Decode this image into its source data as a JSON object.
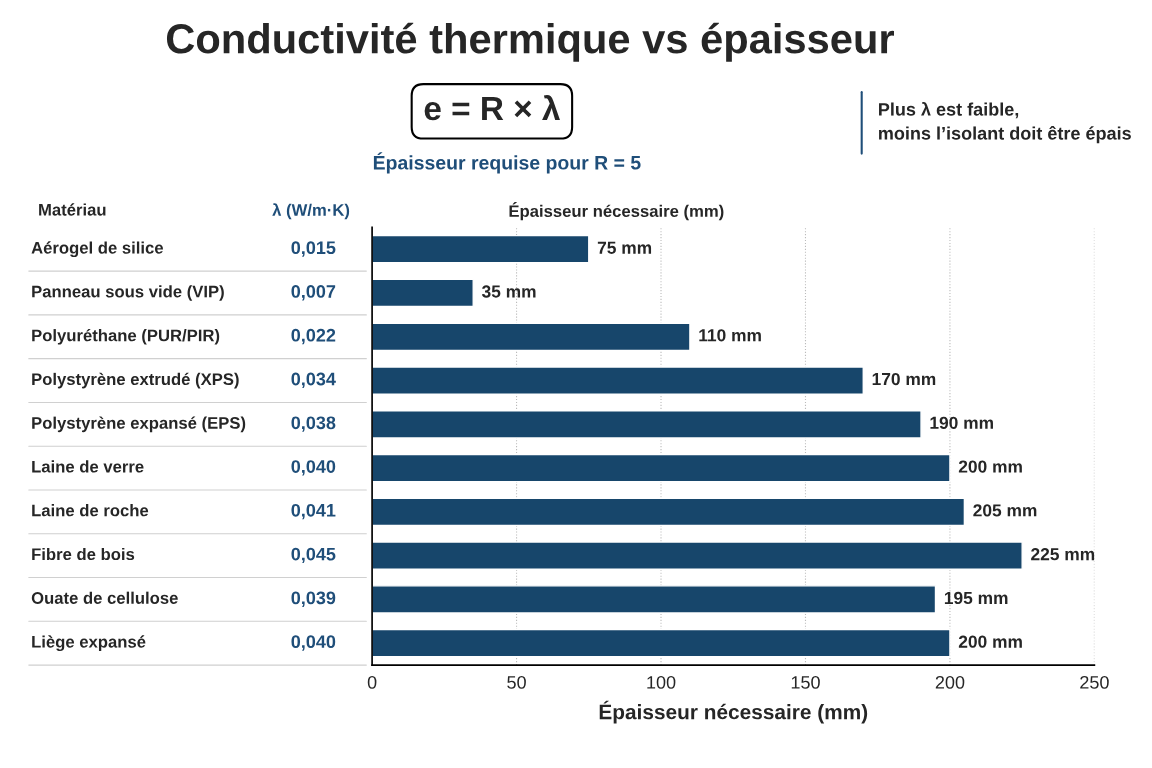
{
  "chart_data": {
    "type": "bar",
    "orientation": "horizontal",
    "title": "Conductivité thermique vs épaisseur",
    "subtitle": "e = R × λ",
    "xlabel": "Épaisseur nécessaire (mm)",
    "categories": [
      "Aérogel de silice",
      "Panneau sous vide (VIP)",
      "Polyuréthane (PUR/PIR)",
      "Polystyrène extrudé (XPS)",
      "Polystyrène expansé (EPS)",
      "Laine de verre",
      "Laine de roche",
      "Fibre de bois",
      "Ouate de cellulose",
      "Liège expansé"
    ],
    "y2_categories": [
      "0,015",
      "0,007",
      "0,022",
      "0,034",
      "0,038",
      "0,040",
      "0,041",
      "0,045",
      "0,039",
      "0,040"
    ],
    "values": [
      75,
      35,
      110,
      170,
      190,
      200,
      205,
      225,
      195,
      200
    ],
    "value_labels": [
      "75 mm",
      "35 mm",
      "110 mm",
      "170 mm",
      "190 mm",
      "200 mm",
      "205 mm",
      "225 mm",
      "195 mm",
      "200 mm"
    ],
    "color": "#17466b",
    "xlim": [
      0,
      250
    ],
    "xticks": [
      0,
      50,
      100,
      150,
      200,
      250
    ],
    "grid": "x",
    "annotations": [
      "Épaisseur requise pour R = 5",
      "Plus λ est faible,\nmoins l’isolant doit être épais",
      "Matériau",
      "λ (W/m·K)",
      "Épaisseur nécessaire (mm)"
    ]
  }
}
